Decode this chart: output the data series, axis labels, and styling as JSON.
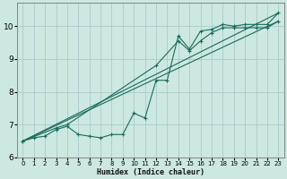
{
  "xlabel": "Humidex (Indice chaleur)",
  "bg_color": "#cce8e0",
  "grid_color": "#aacccc",
  "line_color": "#1a6b5a",
  "xlim": [
    -0.5,
    23.5
  ],
  "ylim": [
    6.0,
    10.7
  ],
  "xticks": [
    0,
    1,
    2,
    3,
    4,
    5,
    6,
    7,
    8,
    9,
    10,
    11,
    12,
    13,
    14,
    15,
    16,
    17,
    18,
    19,
    20,
    21,
    22,
    23
  ],
  "yticks": [
    6,
    7,
    8,
    9,
    10
  ],
  "lines": [
    {
      "x": [
        0,
        1,
        2,
        3,
        4,
        5,
        6,
        7,
        8,
        9,
        10,
        11,
        12,
        13,
        14,
        15,
        16,
        17,
        18,
        19,
        20,
        21,
        22,
        23
      ],
      "y": [
        6.5,
        6.6,
        6.65,
        6.85,
        6.95,
        6.7,
        6.65,
        6.6,
        6.7,
        6.7,
        7.35,
        7.2,
        8.35,
        8.35,
        9.7,
        9.3,
        9.85,
        9.9,
        10.05,
        10.0,
        10.05,
        10.05,
        10.05,
        10.4
      ]
    },
    {
      "x": [
        0,
        3,
        4,
        12,
        14,
        15,
        16,
        17,
        18,
        19,
        20,
        21,
        22,
        23
      ],
      "y": [
        6.5,
        6.9,
        7.0,
        8.8,
        9.55,
        9.25,
        9.55,
        9.8,
        9.95,
        9.95,
        9.95,
        9.95,
        9.95,
        10.15
      ]
    },
    {
      "x": [
        0,
        23
      ],
      "y": [
        6.5,
        10.15
      ]
    },
    {
      "x": [
        0,
        23
      ],
      "y": [
        6.5,
        10.4
      ]
    }
  ]
}
